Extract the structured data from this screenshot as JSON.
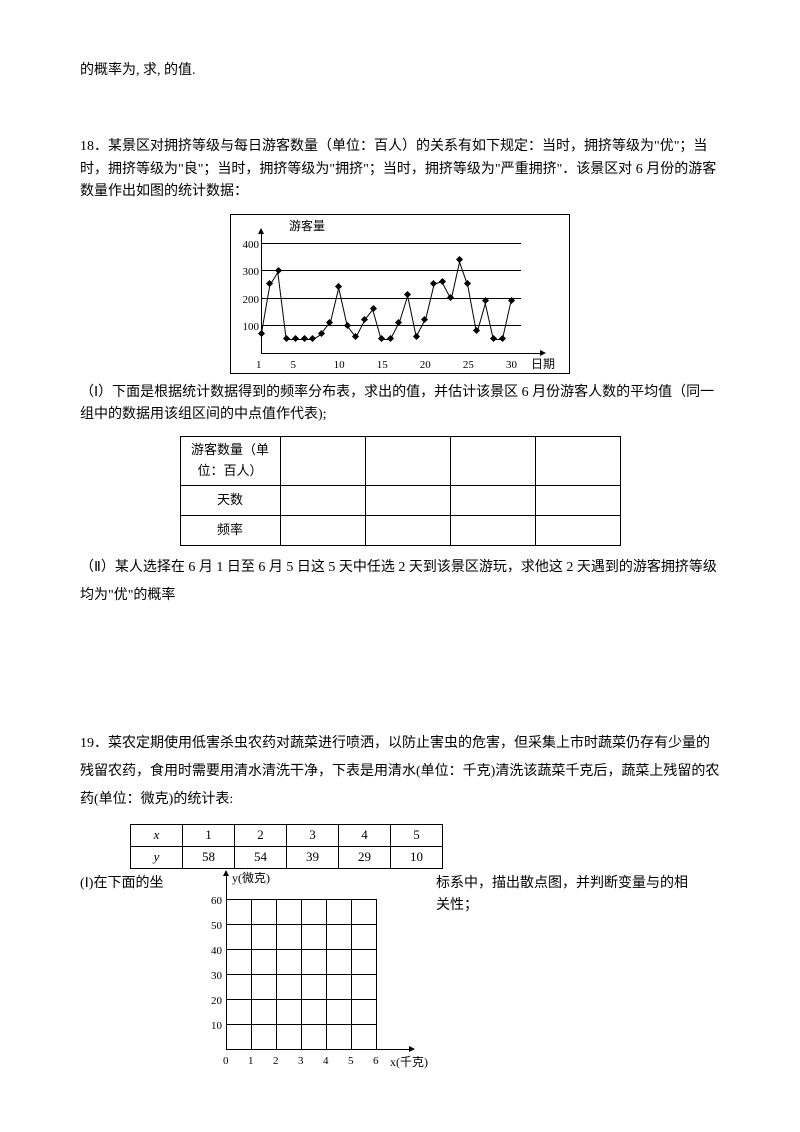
{
  "top_fragment": "的概率为, 求,  的值.",
  "q18": {
    "intro": "18．某景区对拥挤等级与每日游客数量（单位：百人）的关系有如下规定：当时，拥挤等级为\"优\"；当时，拥挤等级为\"良\"；当时，拥挤等级为\"拥挤\"；当时，拥挤等级为\"严重拥挤\"．该景区对 6 月份的游客数量作出如图的统计数据：",
    "chart": {
      "y_title": "游客量",
      "x_title": "日期",
      "y_ticks": [
        "100",
        "200",
        "300",
        "400"
      ],
      "x_ticks": [
        "1",
        "5",
        "10",
        "15",
        "20",
        "25",
        "30"
      ],
      "y_max": 400,
      "x_max": 30,
      "values": [
        70,
        250,
        300,
        50,
        50,
        50,
        50,
        70,
        110,
        240,
        100,
        60,
        120,
        160,
        50,
        50,
        110,
        210,
        60,
        120,
        250,
        260,
        200,
        340,
        250,
        80,
        190,
        50,
        50,
        190
      ],
      "colors": {
        "axis": "#000000",
        "grid": "#000000",
        "series": "#000000",
        "bg": "#ffffff"
      }
    },
    "part1": "（Ⅰ）下面是根据统计数据得到的频率分布表，求出的值，并估计该景区 6 月份游客人数的平均值（同一组中的数据用该组区间的中点值作代表);",
    "freq_table": {
      "row_headers": [
        "游客数量（单位：百人）",
        "天数",
        "频率"
      ],
      "cols": 4
    },
    "part2": "（Ⅱ）某人选择在 6 月 1 日至 6 月 5 日这 5 天中任选 2 天到该景区游玩，求他这 2 天遇到的游客拥挤等级均为\"优\"的概率"
  },
  "q19": {
    "intro": "19．菜农定期使用低害杀虫农药对蔬菜进行喷洒，以防止害虫的危害，但采集上市时蔬菜仍存有少量的残留农药，食用时需要用清水清洗干净，下表是用清水(单位：千克)清洗该蔬菜千克后，蔬菜上残留的农药(单位：微克)的统计表:",
    "table": {
      "headers": [
        "x",
        "1",
        "2",
        "3",
        "4",
        "5"
      ],
      "row2": [
        "y",
        "58",
        "54",
        "39",
        "29",
        "10"
      ]
    },
    "part1_left": "(Ⅰ)在下面的坐",
    "part1_right": "标系中，描出散点图，并判断变量与的相",
    "part1_cont": "关性；",
    "scatter": {
      "y_title": "y(微克)",
      "x_title": "x(千克)",
      "y_ticks": [
        "10",
        "20",
        "30",
        "40",
        "50",
        "60"
      ],
      "x_ticks": [
        "0",
        "1",
        "2",
        "3",
        "4",
        "5",
        "6"
      ],
      "y_max": 60,
      "x_max": 6,
      "colors": {
        "axis": "#000000",
        "grid": "#000000",
        "bg": "#ffffff"
      }
    }
  }
}
